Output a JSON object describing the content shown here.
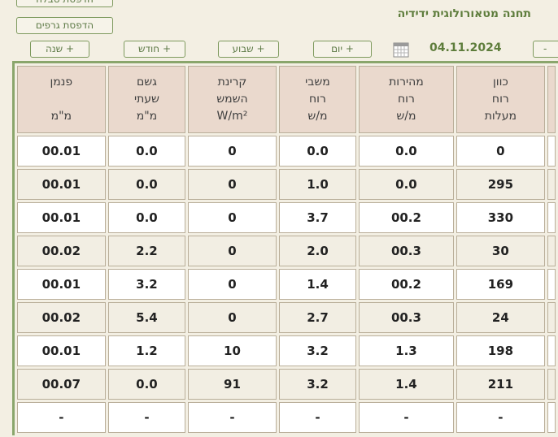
{
  "header": {
    "title": "תחנה מטאורולוגית ידידיה",
    "date": "04.11.2024"
  },
  "buttons": {
    "print_table": "הדפסת טבלה",
    "print_graphs": "הדפסת גרפים",
    "year": "שנה +",
    "month": "חודש +",
    "week": "שבוע +",
    "day": "יום +",
    "edge": "-"
  },
  "table": {
    "columns": [
      {
        "l1": "פנמן",
        "l2": "",
        "l3": "מ\"מ"
      },
      {
        "l1": "גשם",
        "l2": "שעתי",
        "l3": "מ\"מ"
      },
      {
        "l1": "קרינת",
        "l2": "השמש",
        "l3": "W/m²"
      },
      {
        "l1": "משבי",
        "l2": "רוח",
        "l3": "מ/ש"
      },
      {
        "l1": "מהירות",
        "l2": "רוח",
        "l3": "מ/ש"
      },
      {
        "l1": "כוון",
        "l2": "רוח",
        "l3": "מעלות"
      }
    ],
    "rows": [
      [
        "00.01",
        "0.0",
        "0",
        "0.0",
        "0.0",
        "0"
      ],
      [
        "00.01",
        "0.0",
        "0",
        "1.0",
        "0.0",
        "295"
      ],
      [
        "00.01",
        "0.0",
        "0",
        "3.7",
        "00.2",
        "330"
      ],
      [
        "00.02",
        "2.2",
        "0",
        "2.0",
        "00.3",
        "30"
      ],
      [
        "00.01",
        "3.2",
        "0",
        "1.4",
        "00.2",
        "169"
      ],
      [
        "00.02",
        "5.4",
        "0",
        "2.7",
        "00.3",
        "24"
      ],
      [
        "00.01",
        "1.2",
        "10",
        "3.2",
        "1.3",
        "198"
      ],
      [
        "00.07",
        "0.0",
        "91",
        "3.2",
        "1.4",
        "211"
      ],
      [
        "-",
        "-",
        "-",
        "-",
        "-",
        "-"
      ]
    ]
  }
}
